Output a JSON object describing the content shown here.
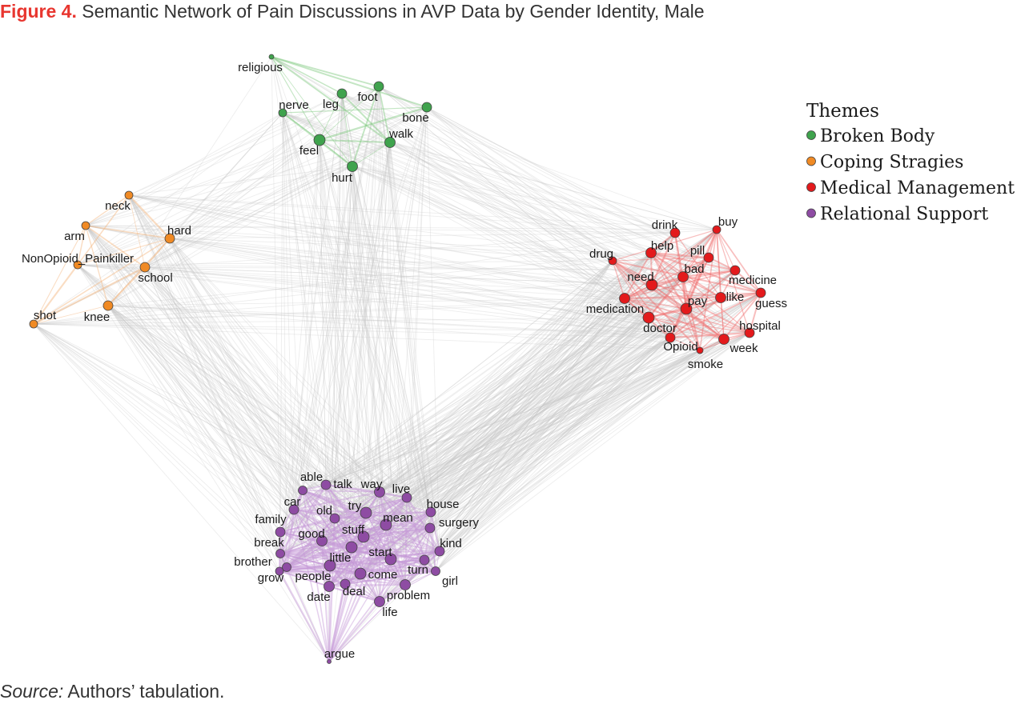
{
  "figure": {
    "title_lead": "Figure 4.",
    "title_text": "Semantic Network of Pain Discussions in AVP Data by Gender Identity, Male",
    "source_lead": "Source:",
    "source_text": "Authors’ tabulation."
  },
  "legend": {
    "title": "Themes",
    "items": [
      {
        "theme": "broken",
        "label": "Broken Body"
      },
      {
        "theme": "coping",
        "label": "Coping Stragies"
      },
      {
        "theme": "medical",
        "label": "Medical Management"
      },
      {
        "theme": "relational",
        "label": "Relational Support"
      }
    ]
  },
  "theme_colors": {
    "broken": "#3fa34d",
    "coping": "#f08a24",
    "medical": "#e31a1c",
    "relational": "#8e4ca3"
  },
  "edge_colors": {
    "broken": "#7cc87c",
    "coping": "#f5b47a",
    "medical": "#ef6f6f",
    "relational": "#c69ad6",
    "cross": "#c8c8c8"
  },
  "nodes": [
    {
      "id": "religious",
      "theme": "broken"
    },
    {
      "id": "nerve",
      "theme": "broken"
    },
    {
      "id": "leg",
      "theme": "broken"
    },
    {
      "id": "foot",
      "theme": "broken"
    },
    {
      "id": "bone",
      "theme": "broken"
    },
    {
      "id": "walk",
      "theme": "broken"
    },
    {
      "id": "feel",
      "theme": "broken"
    },
    {
      "id": "hurt",
      "theme": "broken"
    },
    {
      "id": "neck",
      "theme": "coping"
    },
    {
      "id": "arm",
      "theme": "coping"
    },
    {
      "id": "hard",
      "theme": "coping"
    },
    {
      "id": "NonOpioid_Painkiller",
      "theme": "coping"
    },
    {
      "id": "school",
      "theme": "coping"
    },
    {
      "id": "shot",
      "theme": "coping"
    },
    {
      "id": "knee",
      "theme": "coping"
    },
    {
      "id": "drink",
      "theme": "medical"
    },
    {
      "id": "buy",
      "theme": "medical"
    },
    {
      "id": "drug",
      "theme": "medical"
    },
    {
      "id": "help",
      "theme": "medical"
    },
    {
      "id": "pill",
      "theme": "medical"
    },
    {
      "id": "bad",
      "theme": "medical"
    },
    {
      "id": "need",
      "theme": "medical"
    },
    {
      "id": "medicine",
      "theme": "medical"
    },
    {
      "id": "medication",
      "theme": "medical"
    },
    {
      "id": "pay",
      "theme": "medical"
    },
    {
      "id": "like",
      "theme": "medical"
    },
    {
      "id": "guess",
      "theme": "medical"
    },
    {
      "id": "doctor",
      "theme": "medical"
    },
    {
      "id": "hospital",
      "theme": "medical"
    },
    {
      "id": "Opioid",
      "theme": "medical"
    },
    {
      "id": "week",
      "theme": "medical"
    },
    {
      "id": "smoke",
      "theme": "medical"
    },
    {
      "id": "able",
      "theme": "relational"
    },
    {
      "id": "talk",
      "theme": "relational"
    },
    {
      "id": "way",
      "theme": "relational"
    },
    {
      "id": "live",
      "theme": "relational"
    },
    {
      "id": "car",
      "theme": "relational"
    },
    {
      "id": "old",
      "theme": "relational"
    },
    {
      "id": "try",
      "theme": "relational"
    },
    {
      "id": "house",
      "theme": "relational"
    },
    {
      "id": "family",
      "theme": "relational"
    },
    {
      "id": "mean",
      "theme": "relational"
    },
    {
      "id": "surgery",
      "theme": "relational"
    },
    {
      "id": "good",
      "theme": "relational"
    },
    {
      "id": "stuff",
      "theme": "relational"
    },
    {
      "id": "break",
      "theme": "relational"
    },
    {
      "id": "kind",
      "theme": "relational"
    },
    {
      "id": "start",
      "theme": "relational"
    },
    {
      "id": "little",
      "theme": "relational"
    },
    {
      "id": "brother",
      "theme": "relational"
    },
    {
      "id": "turn",
      "theme": "relational"
    },
    {
      "id": "grow",
      "theme": "relational"
    },
    {
      "id": "people",
      "theme": "relational"
    },
    {
      "id": "come",
      "theme": "relational"
    },
    {
      "id": "girl",
      "theme": "relational"
    },
    {
      "id": "deal",
      "theme": "relational"
    },
    {
      "id": "date",
      "theme": "relational"
    },
    {
      "id": "problem",
      "theme": "relational"
    },
    {
      "id": "life",
      "theme": "relational"
    },
    {
      "id": "argue",
      "theme": "relational"
    }
  ]
}
